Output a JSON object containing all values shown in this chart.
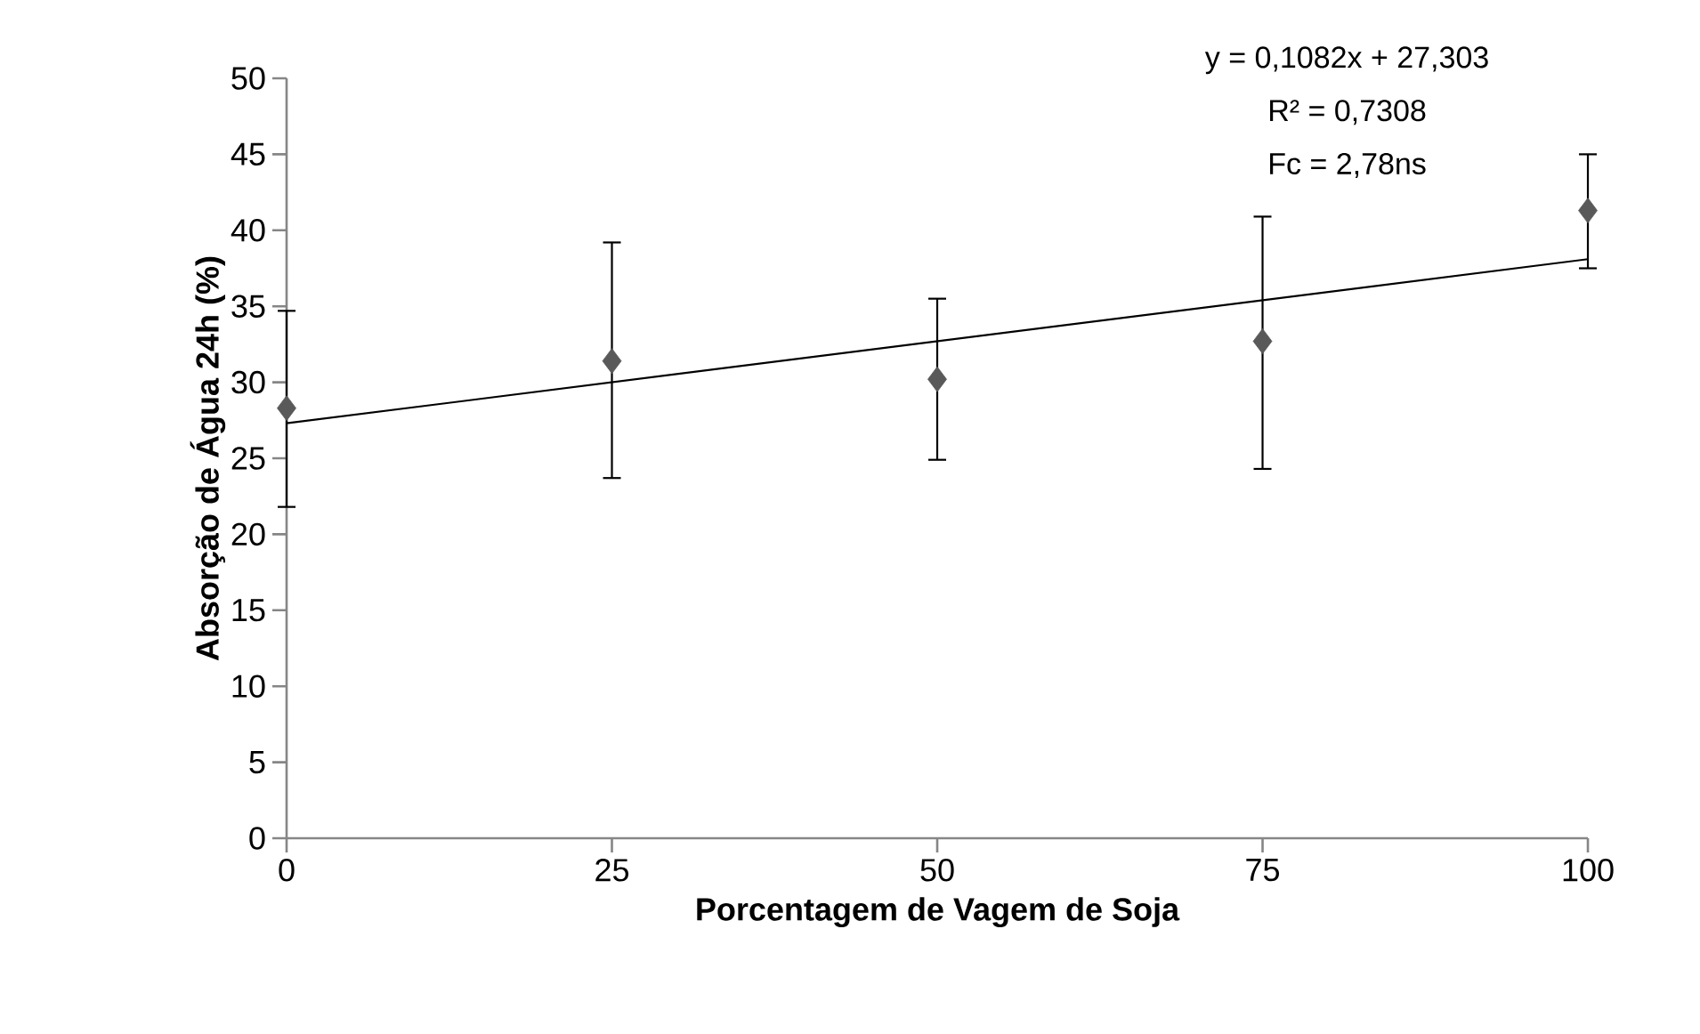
{
  "chart_data": {
    "type": "scatter",
    "xlabel": "Porcentagem de Vagem de Soja",
    "ylabel": "Absorção de Água 24h (%)",
    "x": [
      0,
      25,
      50,
      75,
      100
    ],
    "series": [
      {
        "color": "#595959",
        "marker": "diamond",
        "values": [
          28.3,
          31.4,
          30.2,
          32.7,
          41.3
        ],
        "errors": [
          [
            21.8,
            34.7
          ],
          [
            23.7,
            39.2
          ],
          [
            24.9,
            35.5
          ],
          [
            24.3,
            40.9
          ],
          [
            37.5,
            45.0
          ]
        ]
      },
      {
        "type": "line",
        "color": "#000000",
        "x": [
          0,
          100
        ],
        "values": [
          27.3,
          38.1
        ],
        "line_style": "solid",
        "marker": "none"
      }
    ],
    "annotations": [
      "y = 0,1082x + 27,303",
      "R² = 0,7308",
      "Fc = 2,78ns"
    ],
    "xlim": [
      0,
      100
    ],
    "xticks": [
      0,
      25,
      50,
      75,
      100
    ],
    "ylim": [
      0,
      50
    ],
    "yticks": [
      0,
      5,
      10,
      15,
      20,
      25,
      30,
      35,
      40,
      45,
      50
    ],
    "grid": false
  }
}
